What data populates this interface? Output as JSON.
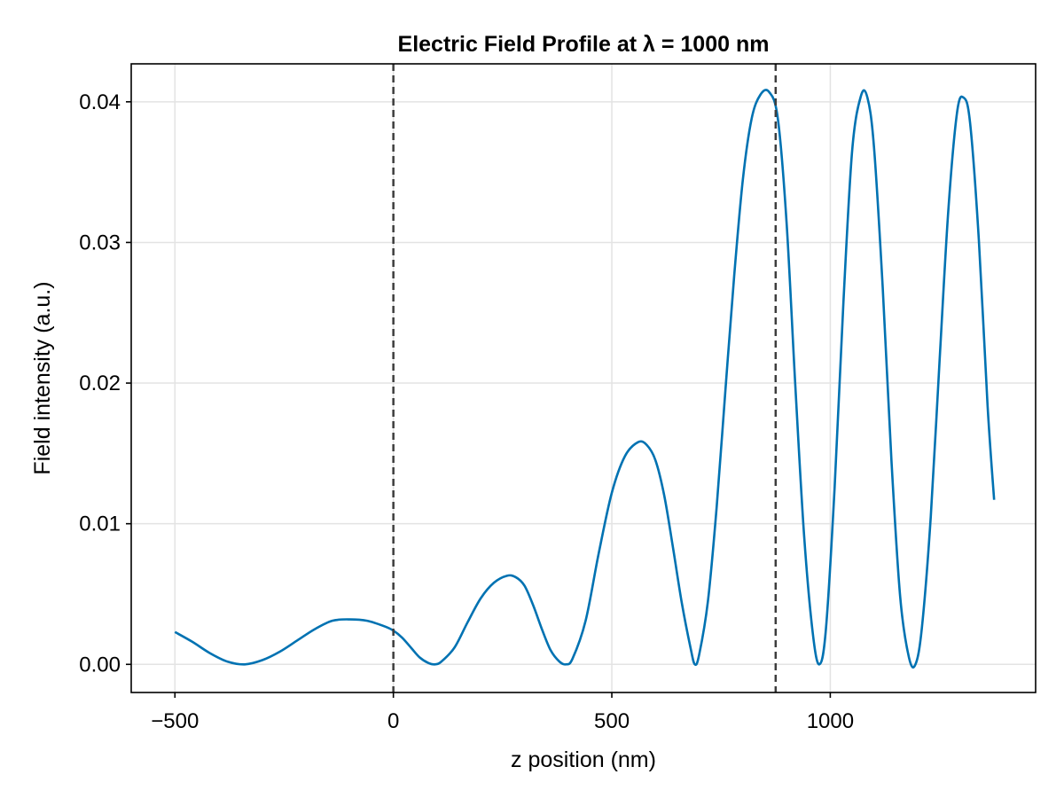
{
  "chart_data": {
    "type": "line",
    "title": "Electric Field Profile at λ = 1000 nm",
    "xlabel": "z position (nm)",
    "ylabel": "Field intensity (a.u.)",
    "xlim": [
      -600,
      1470
    ],
    "ylim": [
      -0.002,
      0.0427
    ],
    "xticks": [
      -500,
      0,
      500,
      1000
    ],
    "xtick_labels": [
      "−500",
      "0",
      "500",
      "1000"
    ],
    "yticks": [
      0.0,
      0.01,
      0.02,
      0.03,
      0.04
    ],
    "ytick_labels": [
      "0.00",
      "0.01",
      "0.02",
      "0.03",
      "0.04"
    ],
    "grid": true,
    "vertical_lines": [
      0,
      875
    ],
    "series": [
      {
        "color": "#0072b2",
        "points": [
          [
            -500,
            0.0023
          ],
          [
            -460,
            0.0016
          ],
          [
            -420,
            0.0008
          ],
          [
            -380,
            0.0002
          ],
          [
            -340,
            0.0
          ],
          [
            -300,
            0.0003
          ],
          [
            -260,
            0.0009
          ],
          [
            -220,
            0.0017
          ],
          [
            -180,
            0.0025
          ],
          [
            -140,
            0.0031
          ],
          [
            -100,
            0.0032
          ],
          [
            -60,
            0.0031
          ],
          [
            -20,
            0.0027
          ],
          [
            0,
            0.0024
          ],
          [
            20,
            0.0019
          ],
          [
            40,
            0.0012
          ],
          [
            60,
            0.0005
          ],
          [
            80,
            0.0001
          ],
          [
            95,
            0.0
          ],
          [
            110,
            0.0002
          ],
          [
            140,
            0.0012
          ],
          [
            170,
            0.003
          ],
          [
            200,
            0.0047
          ],
          [
            230,
            0.0058
          ],
          [
            260,
            0.0063
          ],
          [
            280,
            0.0062
          ],
          [
            300,
            0.0056
          ],
          [
            320,
            0.0042
          ],
          [
            340,
            0.0025
          ],
          [
            360,
            0.001
          ],
          [
            380,
            0.0002
          ],
          [
            395,
            0.0
          ],
          [
            410,
            0.0004
          ],
          [
            440,
            0.0031
          ],
          [
            470,
            0.0079
          ],
          [
            500,
            0.0122
          ],
          [
            530,
            0.0148
          ],
          [
            560,
            0.0158
          ],
          [
            580,
            0.0156
          ],
          [
            600,
            0.0145
          ],
          [
            620,
            0.012
          ],
          [
            640,
            0.0083
          ],
          [
            660,
            0.0044
          ],
          [
            680,
            0.0012
          ],
          [
            690,
            0.0
          ],
          [
            700,
            0.0007
          ],
          [
            720,
            0.0045
          ],
          [
            740,
            0.0112
          ],
          [
            760,
            0.0195
          ],
          [
            780,
            0.0276
          ],
          [
            800,
            0.0345
          ],
          [
            820,
            0.0388
          ],
          [
            840,
            0.0405
          ],
          [
            860,
            0.0407
          ],
          [
            880,
            0.0388
          ],
          [
            900,
            0.0314
          ],
          [
            920,
            0.0198
          ],
          [
            940,
            0.0092
          ],
          [
            960,
            0.0022
          ],
          [
            975,
            0.0
          ],
          [
            990,
            0.0025
          ],
          [
            1010,
            0.0126
          ],
          [
            1030,
            0.0257
          ],
          [
            1050,
            0.0365
          ],
          [
            1070,
            0.0404
          ],
          [
            1085,
            0.0403
          ],
          [
            1100,
            0.0368
          ],
          [
            1120,
            0.0268
          ],
          [
            1140,
            0.0145
          ],
          [
            1160,
            0.0048
          ],
          [
            1180,
            0.0005
          ],
          [
            1195,
            0.0
          ],
          [
            1210,
            0.0027
          ],
          [
            1230,
            0.0105
          ],
          [
            1250,
            0.0215
          ],
          [
            1270,
            0.0322
          ],
          [
            1290,
            0.0392
          ],
          [
            1305,
            0.0403
          ],
          [
            1320,
            0.0385
          ],
          [
            1340,
            0.0302
          ],
          [
            1360,
            0.0184
          ],
          [
            1375,
            0.0117
          ]
        ]
      }
    ]
  }
}
